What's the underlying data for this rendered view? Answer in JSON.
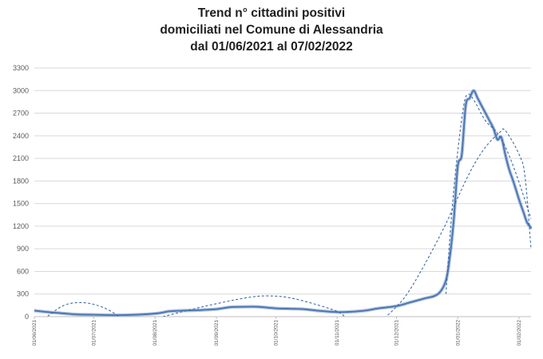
{
  "chart_data": {
    "type": "line",
    "title_lines": [
      "Trend n° cittadini positivi",
      "domiciliati nel Comune di Alessandria",
      "dal 01/06/2021 al 07/02/2022"
    ],
    "xlabel": "",
    "ylabel": "",
    "ylim": [
      0,
      3300
    ],
    "yticks": [
      0,
      300,
      600,
      900,
      1200,
      1500,
      1800,
      2100,
      2400,
      2700,
      3000,
      3300
    ],
    "x_range": [
      "01/06/2021",
      "07/02/2022"
    ],
    "xtick_labels": [
      "01/06/2021",
      "01/07/2021",
      "01/08/2021",
      "01/09/2021",
      "01/10/2021",
      "01/11/2021",
      "01/12/2021",
      "01/01/2022",
      "01/02/2022"
    ],
    "grid": true,
    "legend": "none",
    "colors": {
      "series": "#6a8fc4",
      "series_dark": "#4a73b0",
      "trend": "#3f6aa8",
      "grid": "#d9d9d9"
    },
    "series": [
      {
        "style": "solid",
        "points": [
          [
            "01/06/2021",
            80
          ],
          [
            "08/06/2021",
            60
          ],
          [
            "15/06/2021",
            45
          ],
          [
            "22/06/2021",
            30
          ],
          [
            "01/07/2021",
            25
          ],
          [
            "15/07/2021",
            20
          ],
          [
            "01/08/2021",
            40
          ],
          [
            "08/08/2021",
            70
          ],
          [
            "15/08/2021",
            80
          ],
          [
            "22/08/2021",
            85
          ],
          [
            "01/09/2021",
            100
          ],
          [
            "08/09/2021",
            125
          ],
          [
            "15/09/2021",
            130
          ],
          [
            "22/09/2021",
            130
          ],
          [
            "01/10/2021",
            110
          ],
          [
            "08/10/2021",
            105
          ],
          [
            "15/10/2021",
            100
          ],
          [
            "22/10/2021",
            80
          ],
          [
            "01/11/2021",
            60
          ],
          [
            "08/11/2021",
            65
          ],
          [
            "15/11/2021",
            80
          ],
          [
            "22/11/2021",
            110
          ],
          [
            "01/12/2021",
            140
          ],
          [
            "08/12/2021",
            190
          ],
          [
            "15/12/2021",
            240
          ],
          [
            "22/12/2021",
            300
          ],
          [
            "26/12/2021",
            480
          ],
          [
            "28/12/2021",
            800
          ],
          [
            "30/12/2021",
            1300
          ],
          [
            "01/01/2022",
            2000
          ],
          [
            "03/01/2022",
            2150
          ],
          [
            "05/01/2022",
            2800
          ],
          [
            "07/01/2022",
            2900
          ],
          [
            "09/01/2022",
            3000
          ],
          [
            "11/01/2022",
            2900
          ],
          [
            "13/01/2022",
            2800
          ],
          [
            "15/01/2022",
            2700
          ],
          [
            "17/01/2022",
            2600
          ],
          [
            "19/01/2022",
            2500
          ],
          [
            "21/01/2022",
            2350
          ],
          [
            "23/01/2022",
            2380
          ],
          [
            "25/01/2022",
            2150
          ],
          [
            "27/01/2022",
            1950
          ],
          [
            "29/01/2022",
            1800
          ],
          [
            "01/02/2022",
            1550
          ],
          [
            "03/02/2022",
            1400
          ],
          [
            "05/02/2022",
            1250
          ],
          [
            "07/02/2022",
            1180
          ]
        ]
      },
      {
        "style": "dashed",
        "points": [
          [
            "06/06/2021",
            -30
          ],
          [
            "16/06/2021",
            150
          ],
          [
            "26/06/2021",
            185
          ],
          [
            "06/07/2021",
            120
          ],
          [
            "14/07/2021",
            0
          ]
        ]
      },
      {
        "style": "dashed",
        "points": [
          [
            "05/08/2021",
            0
          ],
          [
            "25/08/2021",
            130
          ],
          [
            "15/09/2021",
            245
          ],
          [
            "27/09/2021",
            275
          ],
          [
            "10/10/2021",
            240
          ],
          [
            "30/10/2021",
            90
          ],
          [
            "05/11/2021",
            0
          ]
        ]
      },
      {
        "style": "dashed",
        "points": [
          [
            "25/11/2021",
            -20
          ],
          [
            "05/12/2021",
            250
          ],
          [
            "15/12/2021",
            680
          ],
          [
            "25/12/2021",
            1180
          ],
          [
            "01/01/2022",
            1580
          ],
          [
            "08/01/2022",
            1960
          ],
          [
            "15/01/2022",
            2250
          ],
          [
            "22/01/2022",
            2440
          ],
          [
            "25/01/2022",
            2470
          ],
          [
            "01/02/2022",
            2150
          ],
          [
            "04/02/2022",
            1850
          ],
          [
            "07/02/2022",
            900
          ]
        ]
      },
      {
        "style": "dashed",
        "points": [
          [
            "26/12/2021",
            300
          ],
          [
            "29/12/2021",
            1400
          ],
          [
            "01/01/2022",
            2200
          ],
          [
            "04/01/2022",
            2800
          ],
          [
            "06/01/2022",
            2950
          ],
          [
            "09/01/2022",
            2880
          ],
          [
            "15/01/2022",
            2600
          ],
          [
            "22/01/2022",
            2400
          ],
          [
            "29/01/2022",
            2000
          ],
          [
            "07/02/2022",
            1300
          ]
        ]
      }
    ]
  }
}
